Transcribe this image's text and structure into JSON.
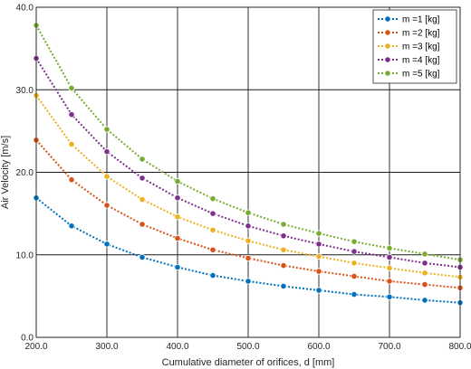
{
  "chart_data": {
    "type": "line",
    "title": "",
    "xlabel": "Cumulative diameter of orifices, d [mm]",
    "ylabel": "Air Velocity [m/s]",
    "xlim": [
      200,
      800
    ],
    "ylim": [
      0,
      40
    ],
    "xticks": [
      200,
      300,
      400,
      500,
      600,
      700,
      800
    ],
    "yticks": [
      0,
      10,
      20,
      30,
      40
    ],
    "xtick_labels": [
      "200.0",
      "300.0",
      "400.0",
      "500.0",
      "600.0",
      "700.0",
      "800.0"
    ],
    "ytick_labels": [
      "0.0",
      "10.0",
      "20.0",
      "30.0",
      "40.0"
    ],
    "grid": true,
    "legend_position": "top-right",
    "x": [
      200,
      250,
      300,
      350,
      400,
      450,
      500,
      550,
      600,
      650,
      700,
      750,
      800
    ],
    "series": [
      {
        "name": "m =1 [kg]",
        "color": "#0072BD",
        "values": [
          16.9,
          13.5,
          11.3,
          9.7,
          8.5,
          7.5,
          6.8,
          6.2,
          5.7,
          5.2,
          4.9,
          4.5,
          4.2
        ]
      },
      {
        "name": "m =2 [kg]",
        "color": "#D95319",
        "values": [
          23.9,
          19.1,
          16.0,
          13.7,
          12.0,
          10.6,
          9.6,
          8.7,
          8.0,
          7.4,
          6.8,
          6.4,
          6.0
        ]
      },
      {
        "name": "m =3 [kg]",
        "color": "#EDB120",
        "values": [
          29.3,
          23.4,
          19.5,
          16.7,
          14.6,
          13.0,
          11.7,
          10.6,
          9.8,
          9.0,
          8.4,
          7.8,
          7.3
        ]
      },
      {
        "name": "m =4 [kg]",
        "color": "#7E2F8E",
        "values": [
          33.8,
          27.0,
          22.5,
          19.3,
          16.9,
          15.0,
          13.5,
          12.3,
          11.3,
          10.4,
          9.7,
          9.0,
          8.5
        ]
      },
      {
        "name": "m =5 [kg]",
        "color": "#77AC30",
        "values": [
          37.8,
          30.2,
          25.2,
          21.6,
          18.9,
          16.8,
          15.1,
          13.7,
          12.6,
          11.6,
          10.8,
          10.1,
          9.4
        ]
      }
    ]
  }
}
